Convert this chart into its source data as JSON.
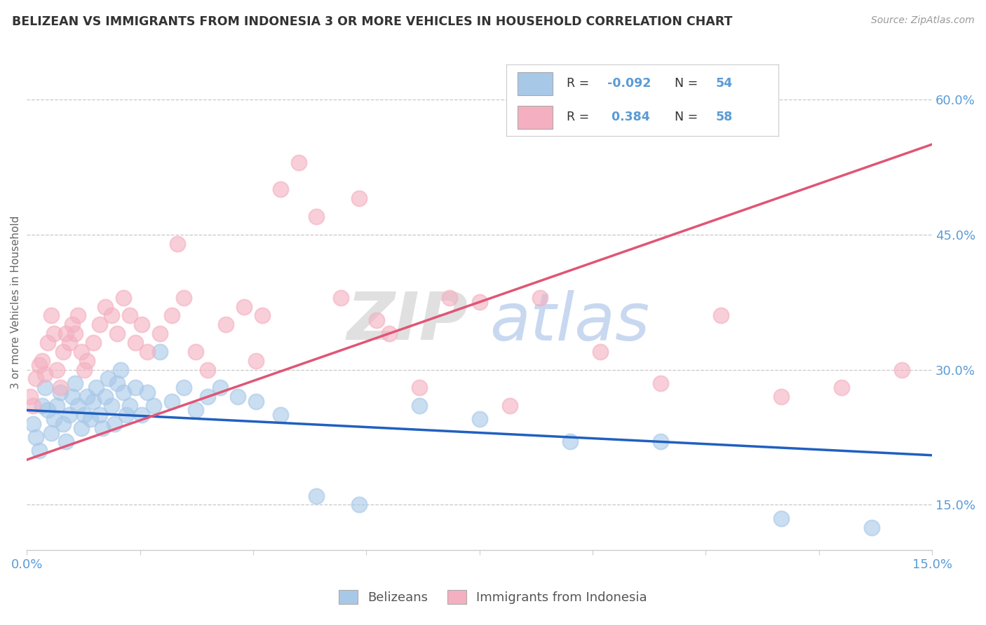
{
  "title": "BELIZEAN VS IMMIGRANTS FROM INDONESIA 3 OR MORE VEHICLES IN HOUSEHOLD CORRELATION CHART",
  "source": "Source: ZipAtlas.com",
  "ylabel": "3 or more Vehicles in Household",
  "xlim": [
    0.0,
    15.0
  ],
  "ylim": [
    10.0,
    65.0
  ],
  "yticks": [
    15.0,
    30.0,
    45.0,
    60.0
  ],
  "blue_r": -0.092,
  "blue_n": 54,
  "pink_r": 0.384,
  "pink_n": 58,
  "blue_color": "#a8c8e8",
  "pink_color": "#f4b0c0",
  "blue_line_color": "#2060c0",
  "pink_line_color": "#e05575",
  "axis_color": "#5b9bd5",
  "grid_color": "#c8c8c8",
  "title_color": "#333333",
  "source_color": "#999999",
  "legend_r_color": "#5b9bd5",
  "blue_line_y0": 25.5,
  "blue_line_y1": 20.5,
  "pink_line_y0": 20.0,
  "pink_line_y1": 55.0,
  "blue_x": [
    0.1,
    0.15,
    0.2,
    0.25,
    0.3,
    0.35,
    0.4,
    0.45,
    0.5,
    0.55,
    0.6,
    0.65,
    0.7,
    0.75,
    0.8,
    0.85,
    0.9,
    0.95,
    1.0,
    1.05,
    1.1,
    1.15,
    1.2,
    1.25,
    1.3,
    1.35,
    1.4,
    1.45,
    1.5,
    1.55,
    1.6,
    1.65,
    1.7,
    1.8,
    1.9,
    2.0,
    2.1,
    2.2,
    2.4,
    2.6,
    2.8,
    3.0,
    3.2,
    3.5,
    3.8,
    4.2,
    4.8,
    5.5,
    6.5,
    7.5,
    9.0,
    10.5,
    12.5,
    14.0
  ],
  "blue_y": [
    24.0,
    22.5,
    21.0,
    26.0,
    28.0,
    25.5,
    23.0,
    24.5,
    26.0,
    27.5,
    24.0,
    22.0,
    25.0,
    27.0,
    28.5,
    26.0,
    23.5,
    25.0,
    27.0,
    24.5,
    26.5,
    28.0,
    25.0,
    23.5,
    27.0,
    29.0,
    26.0,
    24.0,
    28.5,
    30.0,
    27.5,
    25.0,
    26.0,
    28.0,
    25.0,
    27.5,
    26.0,
    32.0,
    26.5,
    28.0,
    25.5,
    27.0,
    28.0,
    27.0,
    26.5,
    25.0,
    16.0,
    15.0,
    26.0,
    24.5,
    22.0,
    22.0,
    13.5,
    12.5
  ],
  "pink_x": [
    0.05,
    0.1,
    0.15,
    0.2,
    0.25,
    0.3,
    0.35,
    0.4,
    0.45,
    0.5,
    0.55,
    0.6,
    0.65,
    0.7,
    0.75,
    0.8,
    0.85,
    0.9,
    0.95,
    1.0,
    1.1,
    1.2,
    1.3,
    1.4,
    1.5,
    1.6,
    1.7,
    1.8,
    1.9,
    2.0,
    2.2,
    2.4,
    2.6,
    2.8,
    3.0,
    3.3,
    3.6,
    3.9,
    4.2,
    4.8,
    5.2,
    5.8,
    6.5,
    7.5,
    8.5,
    9.5,
    10.5,
    11.5,
    12.5,
    13.5,
    14.5,
    4.5,
    5.5,
    6.0,
    2.5,
    3.8,
    7.0,
    8.0
  ],
  "pink_y": [
    27.0,
    26.0,
    29.0,
    30.5,
    31.0,
    29.5,
    33.0,
    36.0,
    34.0,
    30.0,
    28.0,
    32.0,
    34.0,
    33.0,
    35.0,
    34.0,
    36.0,
    32.0,
    30.0,
    31.0,
    33.0,
    35.0,
    37.0,
    36.0,
    34.0,
    38.0,
    36.0,
    33.0,
    35.0,
    32.0,
    34.0,
    36.0,
    38.0,
    32.0,
    30.0,
    35.0,
    37.0,
    36.0,
    50.0,
    47.0,
    38.0,
    35.5,
    28.0,
    37.5,
    38.0,
    32.0,
    28.5,
    36.0,
    27.0,
    28.0,
    30.0,
    53.0,
    49.0,
    34.0,
    44.0,
    31.0,
    38.0,
    26.0
  ]
}
